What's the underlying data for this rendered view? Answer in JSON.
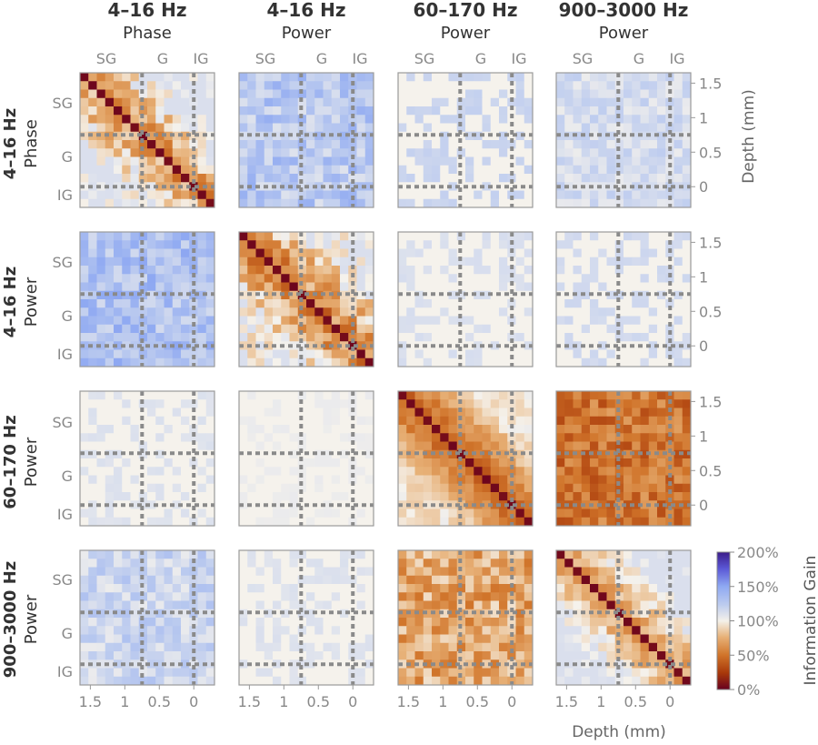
{
  "chart_data": {
    "type": "heatmap",
    "columns": [
      {
        "line1": "4–16 Hz",
        "line2": "Phase"
      },
      {
        "line1": "4–16 Hz",
        "line2": "Power"
      },
      {
        "line1": "60–170 Hz",
        "line2": "Power"
      },
      {
        "line1": "900–3000 Hz",
        "line2": "Power"
      }
    ],
    "rows": [
      {
        "line1": "4–16 Hz",
        "line2": "Phase"
      },
      {
        "line1": "4–16 Hz",
        "line2": "Power"
      },
      {
        "line1": "60–170 Hz",
        "line2": "Power"
      },
      {
        "line1": "900–3000 Hz",
        "line2": "Power"
      }
    ],
    "layer_labels": [
      "SG",
      "G",
      "IG"
    ],
    "depth_ticks": [
      "1.5",
      "1",
      "0.5",
      "0"
    ],
    "depth_tick_values": [
      1.5,
      1.0,
      0.5,
      0.0
    ],
    "depth_range": [
      -0.3,
      1.65
    ],
    "layer_boundaries_mm": [
      0.75,
      0.0
    ],
    "xlabel": "Depth (mm)",
    "ylabel": "Depth (mm)",
    "colorbar": {
      "label": "Information Gain",
      "ticks": [
        "200%",
        "150%",
        "100%",
        "50%",
        "0%"
      ],
      "tick_values": [
        200,
        150,
        100,
        50,
        0
      ],
      "range": [
        0,
        200
      ]
    },
    "grid_size": 16,
    "panel_params": [
      [
        {
          "t": "diag",
          "base": 62,
          "amp": 45
        },
        {
          "t": "blue",
          "base": 128,
          "amp": 18
        },
        {
          "t": "sparse",
          "base": 110,
          "amp": 12
        },
        {
          "t": "blue",
          "base": 114,
          "amp": 10
        }
      ],
      [
        {
          "t": "blue",
          "base": 133,
          "amp": 18
        },
        {
          "t": "diag",
          "base": 52,
          "amp": 45
        },
        {
          "t": "sparse",
          "base": 106,
          "amp": 8
        },
        {
          "t": "sparse",
          "base": 108,
          "amp": 10
        }
      ],
      [
        {
          "t": "sparse",
          "base": 104,
          "amp": 8
        },
        {
          "t": "sparse",
          "base": 101,
          "amp": 4
        },
        {
          "t": "diag",
          "base": 40,
          "amp": 20
        },
        {
          "t": "dark",
          "base": 50,
          "amp": 18
        }
      ],
      [
        {
          "t": "blue",
          "base": 118,
          "amp": 14
        },
        {
          "t": "sparse",
          "base": 104,
          "amp": 8
        },
        {
          "t": "dark",
          "base": 72,
          "amp": 22
        },
        {
          "t": "diag",
          "base": 64,
          "amp": 32
        }
      ]
    ]
  }
}
